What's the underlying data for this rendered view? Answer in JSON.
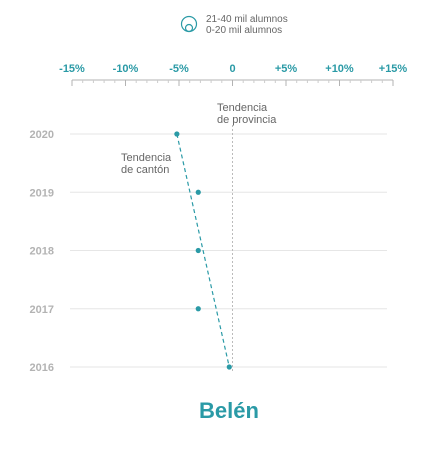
{
  "legend": {
    "icon": "nested-circles-icon",
    "items": [
      "21-40 mil alumnos",
      "0-20 mil alumnos"
    ]
  },
  "annotations": {
    "province_line": [
      "Tendencia",
      "de provincia"
    ],
    "canton_line": [
      "Tendencia",
      "de cantón"
    ]
  },
  "colors": {
    "accent": "#2a9aa6",
    "gridline": "#e6e6e6",
    "year_label": "#b3b3b3",
    "reference_line": "#bbbbbb"
  },
  "chart_data": {
    "type": "scatter",
    "title": "Belén",
    "x_ticks": [
      -15,
      -10,
      -5,
      0,
      5,
      10,
      15
    ],
    "x_tick_labels": [
      "-15%",
      "-10%",
      "-5%",
      "0",
      "+5%",
      "+10%",
      "+15%"
    ],
    "xlim": [
      -15,
      15
    ],
    "categories": [
      "2020",
      "2019",
      "2018",
      "2017",
      "2016"
    ],
    "values": [
      -5.2,
      -3.2,
      -3.2,
      -3.2,
      -0.3
    ],
    "trend_line": {
      "start": {
        "year": "2020",
        "x": -5.2
      },
      "end": {
        "year": "2016",
        "x": -0.3
      }
    },
    "reference_x": 0,
    "grid": true
  }
}
